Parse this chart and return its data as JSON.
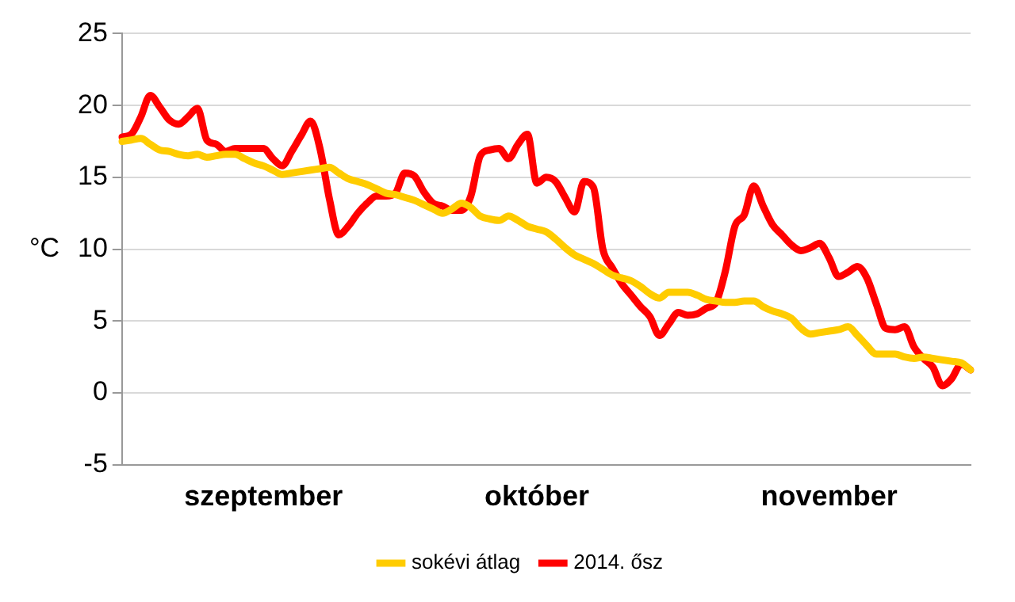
{
  "chart_data": {
    "type": "line",
    "ylabel": "°C",
    "categories": [
      null,
      null,
      null,
      null,
      null,
      null,
      null,
      null,
      null,
      null,
      null,
      null,
      null,
      null,
      null,
      "szeptember",
      null,
      null,
      null,
      null,
      null,
      null,
      null,
      null,
      null,
      null,
      null,
      null,
      null,
      null,
      null,
      null,
      null,
      null,
      null,
      null,
      null,
      null,
      null,
      null,
      null,
      null,
      null,
      null,
      "október",
      null,
      null,
      null,
      null,
      null,
      null,
      null,
      null,
      null,
      null,
      null,
      null,
      null,
      null,
      null,
      null,
      null,
      null,
      null,
      null,
      null,
      null,
      null,
      null,
      null,
      null,
      null,
      null,
      null,
      null,
      "november",
      null,
      null,
      null,
      null,
      null,
      null,
      null,
      null,
      null,
      null,
      null,
      null,
      null,
      null,
      null
    ],
    "ylim": [
      -5,
      25
    ],
    "yticks": [
      -5,
      0,
      5,
      10,
      15,
      20,
      25
    ],
    "grid": "y",
    "legend": "bottom",
    "marker": "none",
    "line_style": "solid",
    "series": [
      {
        "name": "sokévi átlag",
        "color": "#ffcc00",
        "values": [
          17.5,
          17.6,
          17.7,
          17.3,
          16.9,
          16.8,
          16.6,
          16.5,
          16.6,
          16.4,
          16.5,
          16.6,
          16.6,
          16.3,
          16.0,
          15.8,
          15.5,
          15.2,
          15.3,
          15.4,
          15.5,
          15.6,
          15.7,
          15.3,
          14.9,
          14.7,
          14.5,
          14.2,
          13.9,
          13.8,
          13.6,
          13.4,
          13.1,
          12.8,
          12.5,
          12.8,
          13.2,
          12.9,
          12.3,
          12.1,
          12.0,
          12.3,
          12.0,
          11.6,
          11.4,
          11.2,
          10.7,
          10.1,
          9.6,
          9.3,
          9.0,
          8.6,
          8.2,
          8.0,
          7.8,
          7.4,
          6.9,
          6.6,
          7.0,
          7.0,
          7.0,
          6.8,
          6.5,
          6.4,
          6.3,
          6.3,
          6.4,
          6.4,
          6.0,
          5.7,
          5.5,
          5.2,
          4.5,
          4.1,
          4.2,
          4.3,
          4.4,
          4.6,
          4.0,
          3.3,
          2.7,
          2.7,
          2.7,
          2.5,
          2.4,
          2.5,
          2.4,
          2.3,
          2.2,
          2.1,
          1.6
        ]
      },
      {
        "name": "2014. ősz",
        "color": "#ff0000",
        "values": [
          17.8,
          18.0,
          19.2,
          20.7,
          19.9,
          19.0,
          18.7,
          19.2,
          19.8,
          17.6,
          17.3,
          16.8,
          17.0,
          17.0,
          17.0,
          17.0,
          16.3,
          15.8,
          16.8,
          17.9,
          18.9,
          17.0,
          13.5,
          11.0,
          11.6,
          12.5,
          13.2,
          13.7,
          13.7,
          13.9,
          15.3,
          15.1,
          14.0,
          13.2,
          13.0,
          12.7,
          12.7,
          13.7,
          16.5,
          16.9,
          17.0,
          16.3,
          17.3,
          18.0,
          14.6,
          15.0,
          14.7,
          13.6,
          12.6,
          14.7,
          14.3,
          10.0,
          8.7,
          7.6,
          6.8,
          6.0,
          5.3,
          4.0,
          4.8,
          5.6,
          5.4,
          5.5,
          5.9,
          6.3,
          8.5,
          11.6,
          12.4,
          14.4,
          13.0,
          11.7,
          11.0,
          10.3,
          9.9,
          10.1,
          10.4,
          9.4,
          8.1,
          8.4,
          8.8,
          8.0,
          6.2,
          4.5,
          4.4,
          4.6,
          3.2,
          2.4,
          1.8,
          0.5,
          1.0,
          2.0,
          1.6
        ]
      }
    ]
  }
}
